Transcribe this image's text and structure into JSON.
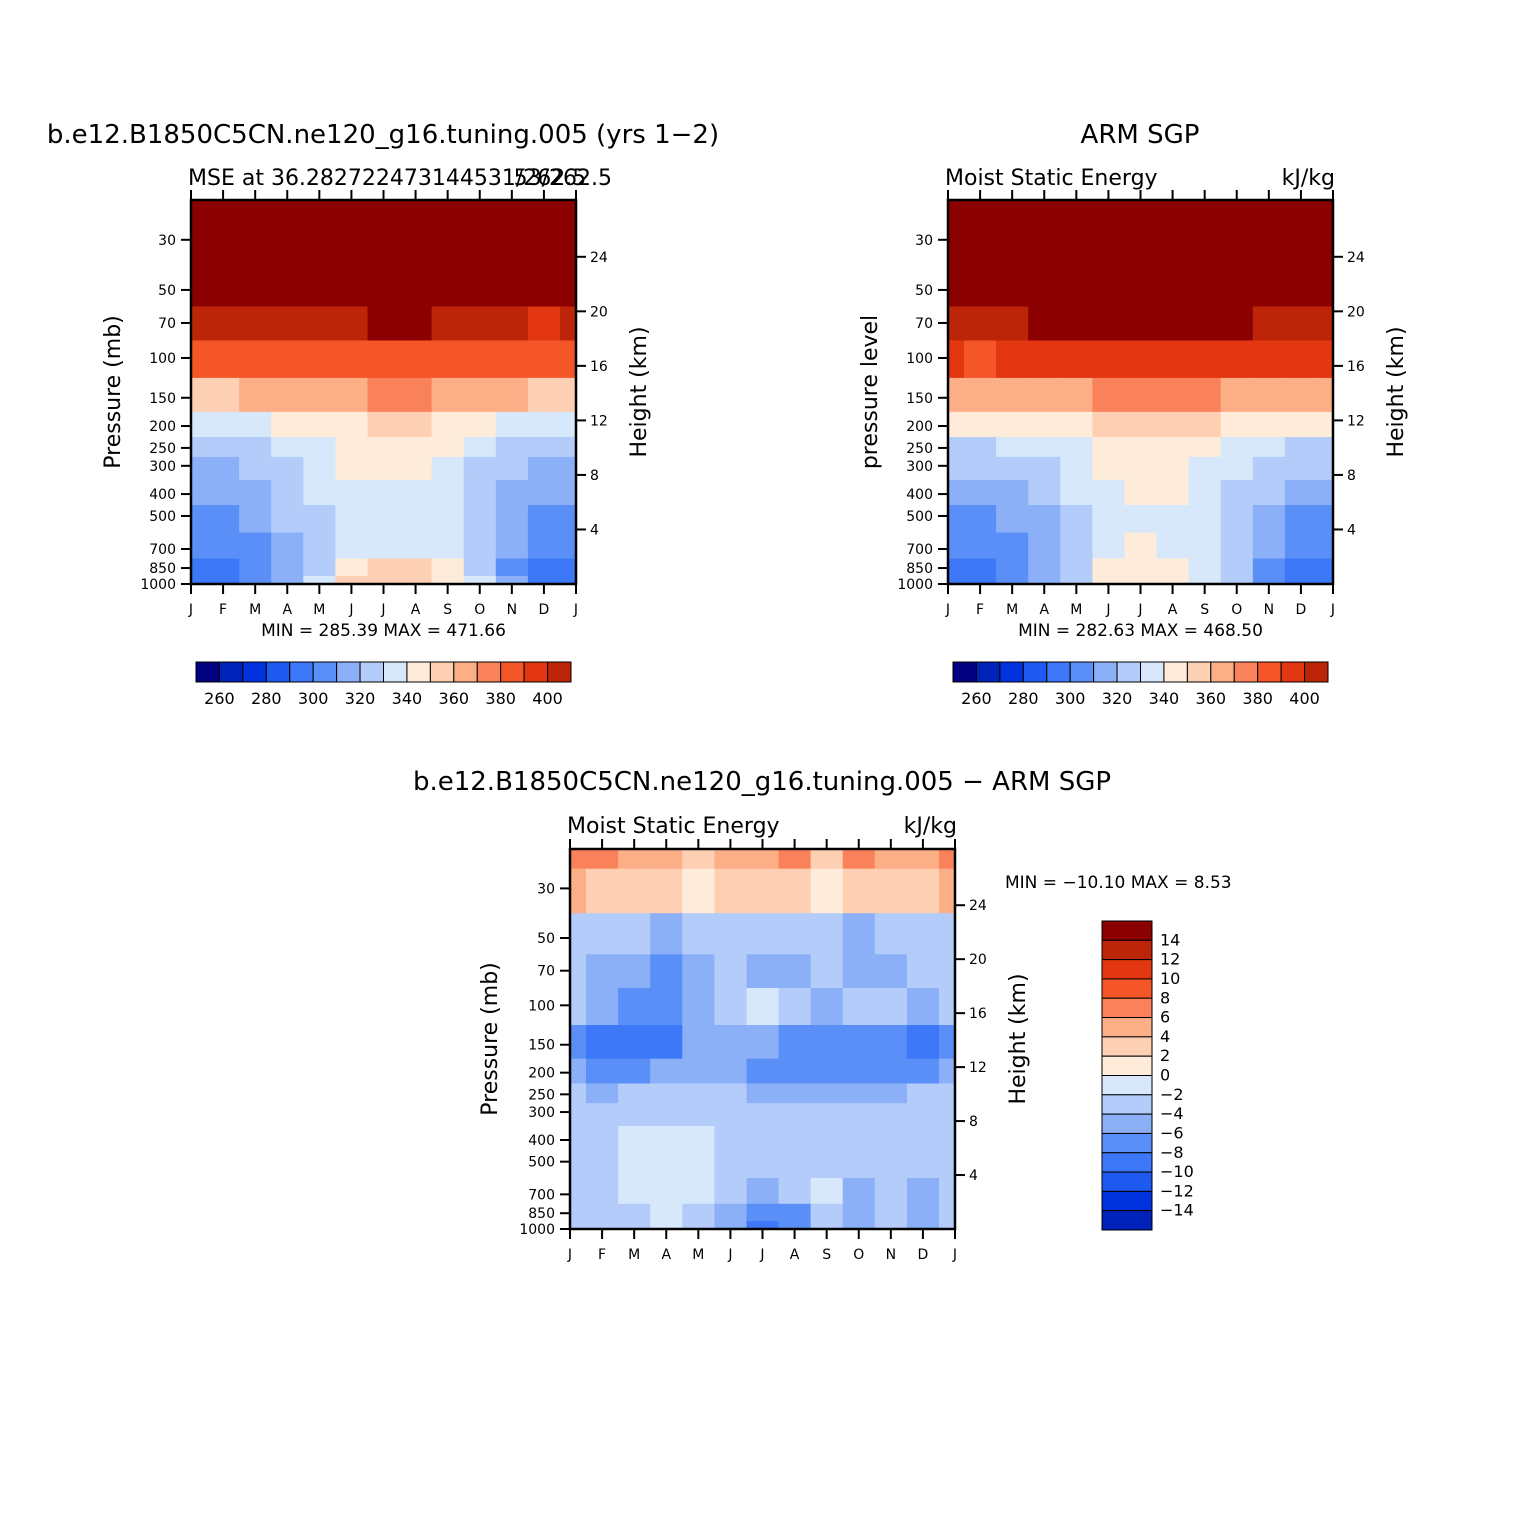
{
  "chart_data": [
    {
      "type": "heatmap",
      "title": "b.e12.B1850C5CN.ne120_g16.tuning.005 (yrs 1−2)",
      "subtitle_left": "MSE at 36.282722473144531/262.5",
      "subtitle_overprint": "53/262.5",
      "ylabel": "Pressure (mb)",
      "ylabel_right": "Height (km)",
      "x_ticks": [
        "J",
        "F",
        "M",
        "A",
        "M",
        "J",
        "J",
        "A",
        "S",
        "O",
        "N",
        "D",
        "J"
      ],
      "y_ticks": [
        "30",
        "50",
        "70",
        "100",
        "150",
        "200",
        "250",
        "300",
        "400",
        "500",
        "700",
        "850",
        "1000"
      ],
      "y_ticks_right": [
        "24",
        "20",
        "16",
        "12",
        "8",
        "4"
      ],
      "min_max": "MIN = 285.39 MAX = 471.66",
      "colorbar_ticks": [
        "260",
        "280",
        "300",
        "320",
        "340",
        "360",
        "380",
        "400"
      ],
      "color_levels": [
        250,
        260,
        270,
        280,
        290,
        300,
        310,
        320,
        330,
        340,
        350,
        360,
        370,
        380,
        390,
        400,
        410
      ],
      "rows_hpa": [
        20,
        30,
        50,
        70,
        100,
        150,
        200,
        250,
        300,
        400,
        500,
        700,
        850,
        1000
      ],
      "values": [
        [
          420,
          420,
          420,
          420,
          420,
          420,
          420,
          420,
          420,
          420,
          420,
          420,
          420
        ],
        [
          420,
          420,
          420,
          420,
          420,
          420,
          420,
          420,
          420,
          420,
          420,
          420,
          420
        ],
        [
          410,
          410,
          410,
          410,
          410,
          410,
          410,
          410,
          410,
          410,
          410,
          410,
          410
        ],
        [
          392,
          390,
          391,
          392,
          395,
          398,
          400,
          400,
          397,
          393,
          391,
          389,
          392
        ],
        [
          372,
          372,
          373,
          374,
          376,
          378,
          379,
          379,
          377,
          375,
          373,
          371,
          372
        ],
        [
          348,
          348,
          350,
          352,
          354,
          358,
          360,
          360,
          356,
          352,
          350,
          348,
          348
        ],
        [
          326,
          327,
          329,
          330,
          332,
          338,
          342,
          341,
          336,
          331,
          328,
          326,
          326
        ],
        [
          314,
          315,
          318,
          322,
          326,
          334,
          337,
          336,
          330,
          322,
          317,
          314,
          314
        ],
        [
          306,
          307,
          311,
          316,
          322,
          331,
          336,
          334,
          326,
          317,
          310,
          306,
          306
        ],
        [
          302,
          303,
          307,
          314,
          320,
          326,
          328,
          326,
          322,
          314,
          306,
          302,
          302
        ],
        [
          298,
          299,
          303,
          311,
          317,
          323,
          324,
          323,
          320,
          313,
          304,
          299,
          298
        ],
        [
          294,
          295,
          299,
          307,
          316,
          324,
          329,
          327,
          321,
          314,
          302,
          295,
          294
        ],
        [
          289,
          288,
          291,
          302,
          319,
          337,
          342,
          340,
          332,
          318,
          298,
          286,
          289
        ],
        [
          286,
          285,
          290,
          302,
          322,
          340,
          344,
          342,
          334,
          320,
          300,
          285,
          286
        ]
      ]
    },
    {
      "type": "heatmap",
      "title": "ARM SGP",
      "subtitle_left": "Moist Static Energy",
      "subtitle_right": "kJ/kg",
      "ylabel": "pressure level",
      "ylabel_right": "Height (km)",
      "x_ticks": [
        "J",
        "F",
        "M",
        "A",
        "M",
        "J",
        "J",
        "A",
        "S",
        "O",
        "N",
        "D",
        "J"
      ],
      "y_ticks": [
        "30",
        "50",
        "70",
        "100",
        "150",
        "200",
        "250",
        "300",
        "400",
        "500",
        "700",
        "850",
        "1000"
      ],
      "y_ticks_right": [
        "24",
        "20",
        "16",
        "12",
        "8",
        "4"
      ],
      "min_max": "MIN = 282.63 MAX = 468.50",
      "colorbar_ticks": [
        "260",
        "280",
        "300",
        "320",
        "340",
        "360",
        "380",
        "400"
      ],
      "color_levels": [
        250,
        260,
        270,
        280,
        290,
        300,
        310,
        320,
        330,
        340,
        350,
        360,
        370,
        380,
        390,
        400,
        410
      ],
      "rows_hpa": [
        20,
        30,
        50,
        70,
        100,
        150,
        200,
        250,
        300,
        400,
        500,
        700,
        850,
        1000
      ],
      "values": [
        [
          420,
          420,
          420,
          420,
          420,
          420,
          420,
          420,
          420,
          420,
          420,
          420,
          420
        ],
        [
          420,
          420,
          420,
          420,
          420,
          420,
          420,
          420,
          420,
          420,
          420,
          420,
          420
        ],
        [
          412,
          412,
          412,
          412,
          412,
          412,
          412,
          412,
          412,
          412,
          412,
          412,
          412
        ],
        [
          398,
          397,
          398,
          400,
          402,
          404,
          405,
          405,
          403,
          401,
          399,
          398,
          398
        ],
        [
          380,
          379,
          380,
          382,
          384,
          387,
          388,
          388,
          386,
          384,
          382,
          380,
          380
        ],
        [
          352,
          352,
          354,
          356,
          358,
          360,
          362,
          362,
          360,
          358,
          356,
          353,
          352
        ],
        [
          330,
          330,
          331,
          333,
          336,
          340,
          345,
          344,
          340,
          336,
          333,
          331,
          330
        ],
        [
          318,
          318,
          320,
          323,
          327,
          333,
          338,
          337,
          332,
          326,
          321,
          318,
          318
        ],
        [
          312,
          312,
          314,
          317,
          322,
          331,
          337,
          336,
          329,
          321,
          315,
          312,
          312
        ],
        [
          305,
          306,
          309,
          314,
          320,
          328,
          334,
          333,
          326,
          318,
          310,
          306,
          305
        ],
        [
          297,
          298,
          302,
          309,
          315,
          322,
          326,
          325,
          320,
          314,
          305,
          298,
          297
        ],
        [
          290,
          291,
          296,
          305,
          315,
          324,
          330,
          329,
          322,
          314,
          300,
          292,
          290
        ],
        [
          287,
          287,
          292,
          302,
          318,
          331,
          337,
          336,
          328,
          316,
          298,
          288,
          287
        ],
        [
          285,
          285,
          290,
          300,
          317,
          332,
          339,
          338,
          329,
          316,
          297,
          286,
          285
        ]
      ]
    },
    {
      "type": "heatmap",
      "title": "b.e12.B1850C5CN.ne120_g16.tuning.005 − ARM SGP",
      "subtitle_left": "Moist Static Energy",
      "subtitle_right": "kJ/kg",
      "ylabel": "Pressure (mb)",
      "ylabel_right": "Height (km)",
      "x_ticks": [
        "J",
        "F",
        "M",
        "A",
        "M",
        "J",
        "J",
        "A",
        "S",
        "O",
        "N",
        "D",
        "J"
      ],
      "y_ticks": [
        "30",
        "50",
        "70",
        "100",
        "150",
        "200",
        "250",
        "300",
        "400",
        "500",
        "700",
        "850",
        "1000"
      ],
      "y_ticks_right": [
        "24",
        "20",
        "16",
        "12",
        "8",
        "4"
      ],
      "min_max": "MIN = −10.10 MAX =    8.53",
      "colorbar_ticks": [
        "14",
        "12",
        "10",
        "8",
        "6",
        "4",
        "2",
        "0",
        "−2",
        "−4",
        "−6",
        "−8",
        "−10",
        "−12",
        "−14"
      ],
      "color_levels": [
        -16,
        -14,
        -12,
        -10,
        -8,
        -6,
        -4,
        -2,
        0,
        2,
        4,
        6,
        8,
        10,
        12,
        14,
        16
      ],
      "rows_hpa": [
        20,
        30,
        50,
        70,
        100,
        150,
        200,
        250,
        300,
        400,
        500,
        700,
        850,
        1000
      ],
      "values": [
        [
          7,
          6,
          5,
          4,
          3,
          4,
          5,
          6,
          3,
          6,
          4,
          5,
          7
        ],
        [
          4,
          3,
          2,
          2,
          1,
          2,
          3,
          3,
          0,
          3,
          2,
          3,
          4
        ],
        [
          -3,
          -4,
          -4,
          -5,
          -4,
          -3,
          -3,
          -4,
          -3,
          -5,
          -4,
          -4,
          -3
        ],
        [
          -3,
          -5,
          -6,
          -7,
          -5,
          -4,
          -5,
          -6,
          -3,
          -5,
          -5,
          -4,
          -3
        ],
        [
          -4,
          -6,
          -7,
          -7,
          -5,
          -3,
          -2,
          -4,
          -5,
          -4,
          -4,
          -5,
          -4
        ],
        [
          -8,
          -9,
          -10,
          -9,
          -6,
          -5,
          -6,
          -7,
          -8,
          -7,
          -8,
          -9,
          -8
        ],
        [
          -6,
          -7,
          -7,
          -5,
          -5,
          -5,
          -7,
          -8,
          -8,
          -8,
          -7,
          -7,
          -6
        ],
        [
          -4,
          -5,
          -4,
          -4,
          -4,
          -4,
          -5,
          -6,
          -6,
          -5,
          -5,
          -4,
          -4
        ],
        [
          -3,
          -3,
          -3,
          -3,
          -3,
          -3,
          -4,
          -4,
          -4,
          -4,
          -4,
          -3,
          -3
        ],
        [
          -3,
          -3,
          -2,
          -1,
          -2,
          -3,
          -4,
          -3,
          -3,
          -4,
          -3,
          -3,
          -3
        ],
        [
          -3,
          -3,
          -1,
          -1,
          -1,
          -3,
          -4,
          -4,
          -3,
          -4,
          -3,
          -3,
          -3
        ],
        [
          -3,
          -4,
          -2,
          -1,
          -2,
          -4,
          -5,
          -4,
          -2,
          -5,
          -4,
          -5,
          -3
        ],
        [
          -3,
          -4,
          -3,
          -1,
          -3,
          -6,
          -8,
          -7,
          -3,
          -6,
          -4,
          -6,
          -3
        ],
        [
          -3,
          -4,
          -3,
          -2,
          -3,
          -6,
          -9,
          -8,
          -4,
          -5,
          -4,
          -5,
          -3
        ]
      ]
    }
  ],
  "colors": {
    "sequential_16": [
      "#000080",
      "#0022b8",
      "#0033dd",
      "#1f5af0",
      "#3c78f7",
      "#5a8ff7",
      "#8cb0f7",
      "#b4ccf9",
      "#d7e8fb",
      "#feebd9",
      "#fdd0b4",
      "#fcaf87",
      "#f9825a",
      "#f45628",
      "#e23711",
      "#bd2509",
      "#8b0000"
    ]
  }
}
